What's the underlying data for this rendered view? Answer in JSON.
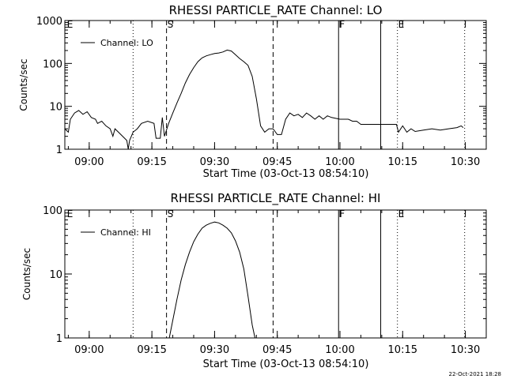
{
  "footer_timestamp": "22-Oct-2021 18:28",
  "chart_data": [
    {
      "type": "line",
      "title": "RHESSI PARTICLE_RATE Channel: LO",
      "xlabel": "Start Time (03-Oct-13 08:54:10)",
      "ylabel": "Counts/sec",
      "y_scale": "log",
      "ylim": [
        1,
        1000
      ],
      "y_tick_labels": [
        "1",
        "10",
        "100",
        "1000"
      ],
      "xlim": [
        "08:54:10",
        "10:35:00"
      ],
      "x_tick_labels": [
        "09:00",
        "09:15",
        "09:30",
        "09:45",
        "10:00",
        "10:15",
        "10:30"
      ],
      "legend": {
        "position": "top-left",
        "entries": [
          "Channel: LO"
        ]
      },
      "grid": false,
      "markers": [
        {
          "time": "08:54:30",
          "label": "E",
          "style": "none"
        },
        {
          "time": "09:10:30",
          "label": "",
          "style": "dotted"
        },
        {
          "time": "09:18:30",
          "label": "S",
          "style": "dashed"
        },
        {
          "time": "09:44:00",
          "label": "",
          "style": "dashed"
        },
        {
          "time": "09:59:40",
          "label": "F",
          "style": "solid"
        },
        {
          "time": "10:09:45",
          "label": "",
          "style": "solid"
        },
        {
          "time": "10:13:45",
          "label": "E",
          "style": "dotted"
        },
        {
          "time": "10:29:50",
          "label": "",
          "style": "dotted"
        }
      ],
      "series": [
        {
          "name": "Channel: LO",
          "points": [
            [
              "08:54:10",
              3.0
            ],
            [
              "08:55:00",
              2.5
            ],
            [
              "08:55:30",
              5.0
            ],
            [
              "08:56:30",
              7.0
            ],
            [
              "08:57:30",
              8.0
            ],
            [
              "08:58:30",
              6.5
            ],
            [
              "08:59:30",
              7.5
            ],
            [
              "09:00:30",
              5.5
            ],
            [
              "09:01:30",
              5.0
            ],
            [
              "09:02:00",
              4.0
            ],
            [
              "09:03:00",
              4.5
            ],
            [
              "09:04:00",
              3.5
            ],
            [
              "09:05:00",
              3.0
            ],
            [
              "09:05:40",
              2.0
            ],
            [
              "09:06:10",
              3.0
            ],
            [
              "09:07:00",
              2.5
            ],
            [
              "09:08:00",
              2.0
            ],
            [
              "09:09:00",
              1.6
            ],
            [
              "09:09:20",
              1.0
            ],
            [
              "09:09:40",
              1.6
            ],
            [
              "09:10:30",
              2.5
            ],
            [
              "09:11:30",
              3.0
            ],
            [
              "09:12:30",
              4.0
            ],
            [
              "09:14:00",
              4.5
            ],
            [
              "09:15:30",
              4.0
            ],
            [
              "09:16:00",
              1.8
            ],
            [
              "09:17:00",
              1.8
            ],
            [
              "09:17:30",
              5.5
            ],
            [
              "09:18:00",
              2.0
            ],
            [
              "09:19:00",
              4.0
            ],
            [
              "09:20:00",
              7.0
            ],
            [
              "09:21:00",
              12.0
            ],
            [
              "09:22:00",
              20.0
            ],
            [
              "09:23:00",
              35.0
            ],
            [
              "09:24:00",
              55.0
            ],
            [
              "09:25:00",
              80.0
            ],
            [
              "09:26:00",
              110.0
            ],
            [
              "09:27:00",
              135.0
            ],
            [
              "09:28:00",
              150.0
            ],
            [
              "09:29:00",
              160.0
            ],
            [
              "09:30:00",
              170.0
            ],
            [
              "09:31:00",
              175.0
            ],
            [
              "09:32:00",
              185.0
            ],
            [
              "09:33:00",
              205.0
            ],
            [
              "09:34:00",
              195.0
            ],
            [
              "09:35:00",
              160.0
            ],
            [
              "09:36:00",
              130.0
            ],
            [
              "09:37:00",
              110.0
            ],
            [
              "09:38:00",
              90.0
            ],
            [
              "09:39:00",
              50.0
            ],
            [
              "09:40:00",
              15.0
            ],
            [
              "09:41:00",
              3.5
            ],
            [
              "09:42:00",
              2.5
            ],
            [
              "09:43:00",
              3.0
            ],
            [
              "09:44:00",
              3.0
            ],
            [
              "09:45:00",
              2.2
            ],
            [
              "09:46:00",
              2.2
            ],
            [
              "09:47:00",
              5.0
            ],
            [
              "09:48:00",
              7.0
            ],
            [
              "09:49:00",
              6.0
            ],
            [
              "09:50:00",
              6.5
            ],
            [
              "09:51:00",
              5.5
            ],
            [
              "09:52:00",
              7.0
            ],
            [
              "09:53:00",
              6.0
            ],
            [
              "09:54:00",
              5.0
            ],
            [
              "09:55:00",
              6.0
            ],
            [
              "09:56:00",
              5.0
            ],
            [
              "09:57:00",
              6.0
            ],
            [
              "09:58:00",
              5.5
            ],
            [
              "10:00:00",
              5.0
            ],
            [
              "10:02:00",
              5.0
            ],
            [
              "10:03:00",
              4.5
            ],
            [
              "10:04:00",
              4.5
            ],
            [
              "10:05:00",
              3.8
            ],
            [
              "10:07:00",
              3.8
            ],
            [
              "10:10:00",
              3.8
            ],
            [
              "10:13:30",
              3.8
            ],
            [
              "10:14:00",
              2.5
            ],
            [
              "10:15:00",
              3.5
            ],
            [
              "10:16:00",
              2.5
            ],
            [
              "10:17:00",
              3.0
            ],
            [
              "10:18:00",
              2.6
            ],
            [
              "10:20:00",
              2.8
            ],
            [
              "10:22:00",
              3.0
            ],
            [
              "10:24:00",
              2.8
            ],
            [
              "10:26:00",
              3.0
            ],
            [
              "10:28:00",
              3.2
            ],
            [
              "10:29:00",
              3.5
            ],
            [
              "10:29:30",
              3.2
            ]
          ]
        }
      ]
    },
    {
      "type": "line",
      "title": "RHESSI PARTICLE_RATE Channel: HI",
      "xlabel": "Start Time (03-Oct-13 08:54:10)",
      "ylabel": "Counts/sec",
      "y_scale": "log",
      "ylim": [
        1,
        100
      ],
      "y_tick_labels": [
        "1",
        "10",
        "100"
      ],
      "xlim": [
        "08:54:10",
        "10:35:00"
      ],
      "x_tick_labels": [
        "09:00",
        "09:15",
        "09:30",
        "09:45",
        "10:00",
        "10:15",
        "10:30"
      ],
      "legend": {
        "position": "top-left",
        "entries": [
          "Channel: HI"
        ]
      },
      "grid": false,
      "markers": [
        {
          "time": "08:54:30",
          "label": "E",
          "style": "none"
        },
        {
          "time": "09:10:30",
          "label": "",
          "style": "dotted"
        },
        {
          "time": "09:18:30",
          "label": "S",
          "style": "dashed"
        },
        {
          "time": "09:44:00",
          "label": "",
          "style": "dashed"
        },
        {
          "time": "09:59:40",
          "label": "F",
          "style": "solid"
        },
        {
          "time": "10:09:45",
          "label": "",
          "style": "solid"
        },
        {
          "time": "10:13:45",
          "label": "E",
          "style": "dotted"
        },
        {
          "time": "10:29:50",
          "label": "",
          "style": "dotted"
        }
      ],
      "series": [
        {
          "name": "Channel: HI",
          "points": [
            [
              "09:19:10",
              1.0
            ],
            [
              "09:20:00",
              1.9
            ],
            [
              "09:21:00",
              4.0
            ],
            [
              "09:22:00",
              8.0
            ],
            [
              "09:23:00",
              14.0
            ],
            [
              "09:24:00",
              22.0
            ],
            [
              "09:25:00",
              32.0
            ],
            [
              "09:26:00",
              42.0
            ],
            [
              "09:27:00",
              52.0
            ],
            [
              "09:28:00",
              58.0
            ],
            [
              "09:29:00",
              62.0
            ],
            [
              "09:30:00",
              65.0
            ],
            [
              "09:31:00",
              63.0
            ],
            [
              "09:32:00",
              58.0
            ],
            [
              "09:33:00",
              52.0
            ],
            [
              "09:34:00",
              44.0
            ],
            [
              "09:35:00",
              33.0
            ],
            [
              "09:36:00",
              22.0
            ],
            [
              "09:37:00",
              12.0
            ],
            [
              "09:38:00",
              4.5
            ],
            [
              "09:39:00",
              1.6
            ],
            [
              "09:39:40",
              1.0
            ]
          ]
        }
      ]
    }
  ]
}
